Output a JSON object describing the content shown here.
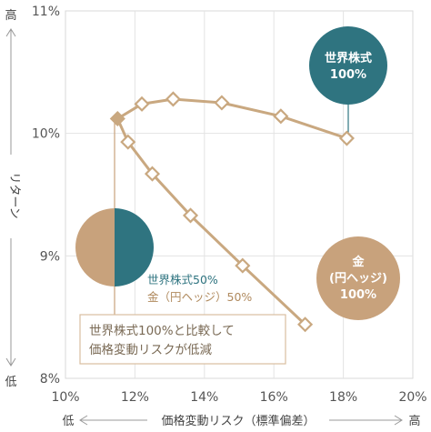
{
  "chart_data": {
    "type": "scatter",
    "xlim": [
      10,
      20
    ],
    "ylim": [
      8,
      11
    ],
    "x_ticks": [
      "10%",
      "12%",
      "14%",
      "16%",
      "18%",
      "20%"
    ],
    "y_ticks": [
      "8%",
      "9%",
      "10%",
      "11%"
    ],
    "x_tick_values": [
      10,
      12,
      14,
      16,
      18,
      20
    ],
    "y_tick_values": [
      8,
      9,
      10,
      11
    ],
    "xlabel": "価格変動リスク（標準偏差）",
    "xlabel_low": "低",
    "xlabel_high": "高",
    "ylabel": "リターン",
    "ylabel_high": "高",
    "ylabel_low": "低",
    "grid": true,
    "colors": {
      "line": "#c9a880",
      "equity": "#2f7480",
      "gold": "#c8a27c",
      "callout_text": "#7a6a55"
    },
    "frontier_upper": [
      {
        "x": 11.5,
        "y": 10.12
      },
      {
        "x": 12.2,
        "y": 10.24
      },
      {
        "x": 13.1,
        "y": 10.28
      },
      {
        "x": 14.5,
        "y": 10.25
      },
      {
        "x": 16.2,
        "y": 10.14
      },
      {
        "x": 18.1,
        "y": 9.96
      }
    ],
    "frontier_lower": [
      {
        "x": 11.5,
        "y": 10.12
      },
      {
        "x": 11.8,
        "y": 9.93
      },
      {
        "x": 12.5,
        "y": 9.67
      },
      {
        "x": 13.6,
        "y": 9.33
      },
      {
        "x": 15.1,
        "y": 8.92
      },
      {
        "x": 16.9,
        "y": 8.44
      }
    ],
    "highlight_point": {
      "x": 11.5,
      "y": 10.12
    },
    "equity_label": {
      "line1": "世界株式",
      "line2": "100%"
    },
    "gold_label": {
      "line1": "金",
      "line2": "(円ヘッジ)",
      "line3": "100%"
    },
    "portfolio_legend": {
      "line1": "世界株式50%",
      "line2": "金（円ヘッジ）50%"
    },
    "callout": {
      "line1": "世界株式100%と比較して",
      "line2": "価格変動リスクが低減"
    }
  }
}
